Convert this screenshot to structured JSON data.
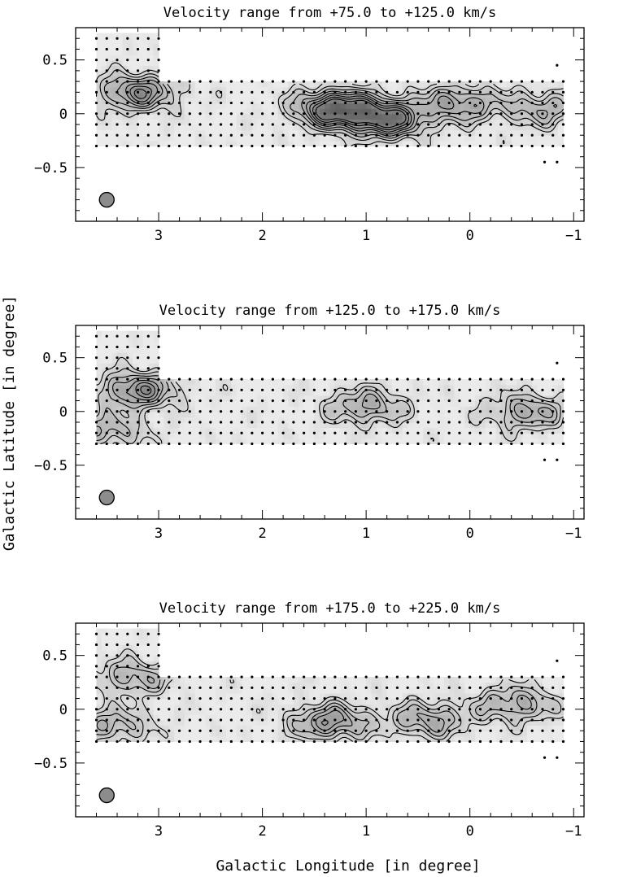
{
  "figure": {
    "xlabel": "Galactic Longitude [in degree]",
    "ylabel": "Galactic Latitude [in degree]"
  },
  "chart_data": [
    {
      "type": "heatmap",
      "title": "Velocity range from +75.0 to +125.0 km/s",
      "xlim": [
        3.8,
        -1.1
      ],
      "ylim": [
        -1.0,
        0.8
      ],
      "xticks": [
        3,
        2,
        1,
        0,
        -1
      ],
      "xtick_labels": [
        "3",
        "2",
        "1",
        "0",
        "−1"
      ],
      "yticks": [
        0.5,
        0,
        -0.5
      ],
      "ytick_labels": [
        "0.5",
        "0",
        "−0.5"
      ],
      "survey_region": {
        "strip": {
          "l": [
            3.6,
            -0.9
          ],
          "b": [
            -0.3,
            0.3
          ]
        },
        "extension": {
          "l": [
            3.6,
            3.0
          ],
          "b": [
            0.3,
            0.75
          ]
        }
      },
      "peaks": [
        {
          "l": 3.2,
          "b": 0.2,
          "level": 0.55
        },
        {
          "l": 1.3,
          "b": 0.05,
          "level": 0.8
        },
        {
          "l": 0.8,
          "b": -0.05,
          "level": 0.7
        },
        {
          "l": 0.1,
          "b": 0.1,
          "level": 0.45
        },
        {
          "l": -0.7,
          "b": 0.05,
          "level": 0.35
        }
      ],
      "beam": {
        "l": 3.5,
        "b": -0.8
      }
    },
    {
      "type": "heatmap",
      "title": "Velocity range from +125.0 to +175.0 km/s",
      "xlim": [
        3.8,
        -1.1
      ],
      "ylim": [
        -1.0,
        0.8
      ],
      "xticks": [
        3,
        2,
        1,
        0,
        -1
      ],
      "xtick_labels": [
        "3",
        "2",
        "1",
        "0",
        "−1"
      ],
      "yticks": [
        0.5,
        0,
        -0.5
      ],
      "ytick_labels": [
        "0.5",
        "0",
        "−0.5"
      ],
      "survey_region": {
        "strip": {
          "l": [
            3.6,
            -0.9
          ],
          "b": [
            -0.3,
            0.3
          ]
        },
        "extension": {
          "l": [
            3.6,
            3.0
          ],
          "b": [
            0.3,
            0.75
          ]
        }
      },
      "peaks": [
        {
          "l": 3.2,
          "b": 0.2,
          "level": 0.55
        },
        {
          "l": 3.5,
          "b": -0.18,
          "level": 0.35
        },
        {
          "l": 1.0,
          "b": 0.05,
          "level": 0.4
        },
        {
          "l": -0.55,
          "b": 0.0,
          "level": 0.4
        }
      ],
      "beam": {
        "l": 3.5,
        "b": -0.8
      }
    },
    {
      "type": "heatmap",
      "title": "Velocity range from +175.0 to +225.0 km/s",
      "xlim": [
        3.8,
        -1.1
      ],
      "ylim": [
        -1.0,
        0.8
      ],
      "xticks": [
        3,
        2,
        1,
        0,
        -1
      ],
      "xtick_labels": [
        "3",
        "2",
        "1",
        "0",
        "−1"
      ],
      "yticks": [
        0.5,
        0,
        -0.5
      ],
      "ytick_labels": [
        "0.5",
        "0",
        "−0.5"
      ],
      "survey_region": {
        "strip": {
          "l": [
            3.6,
            -0.9
          ],
          "b": [
            -0.3,
            0.3
          ]
        },
        "extension": {
          "l": [
            3.6,
            3.0
          ],
          "b": [
            0.3,
            0.75
          ]
        }
      },
      "peaks": [
        {
          "l": 3.25,
          "b": 0.3,
          "level": 0.35
        },
        {
          "l": 3.45,
          "b": -0.15,
          "level": 0.35
        },
        {
          "l": 1.35,
          "b": -0.12,
          "level": 0.5
        },
        {
          "l": 0.4,
          "b": -0.1,
          "level": 0.4
        },
        {
          "l": -0.45,
          "b": 0.05,
          "level": 0.4
        }
      ],
      "beam": {
        "l": 3.5,
        "b": -0.8
      }
    }
  ]
}
